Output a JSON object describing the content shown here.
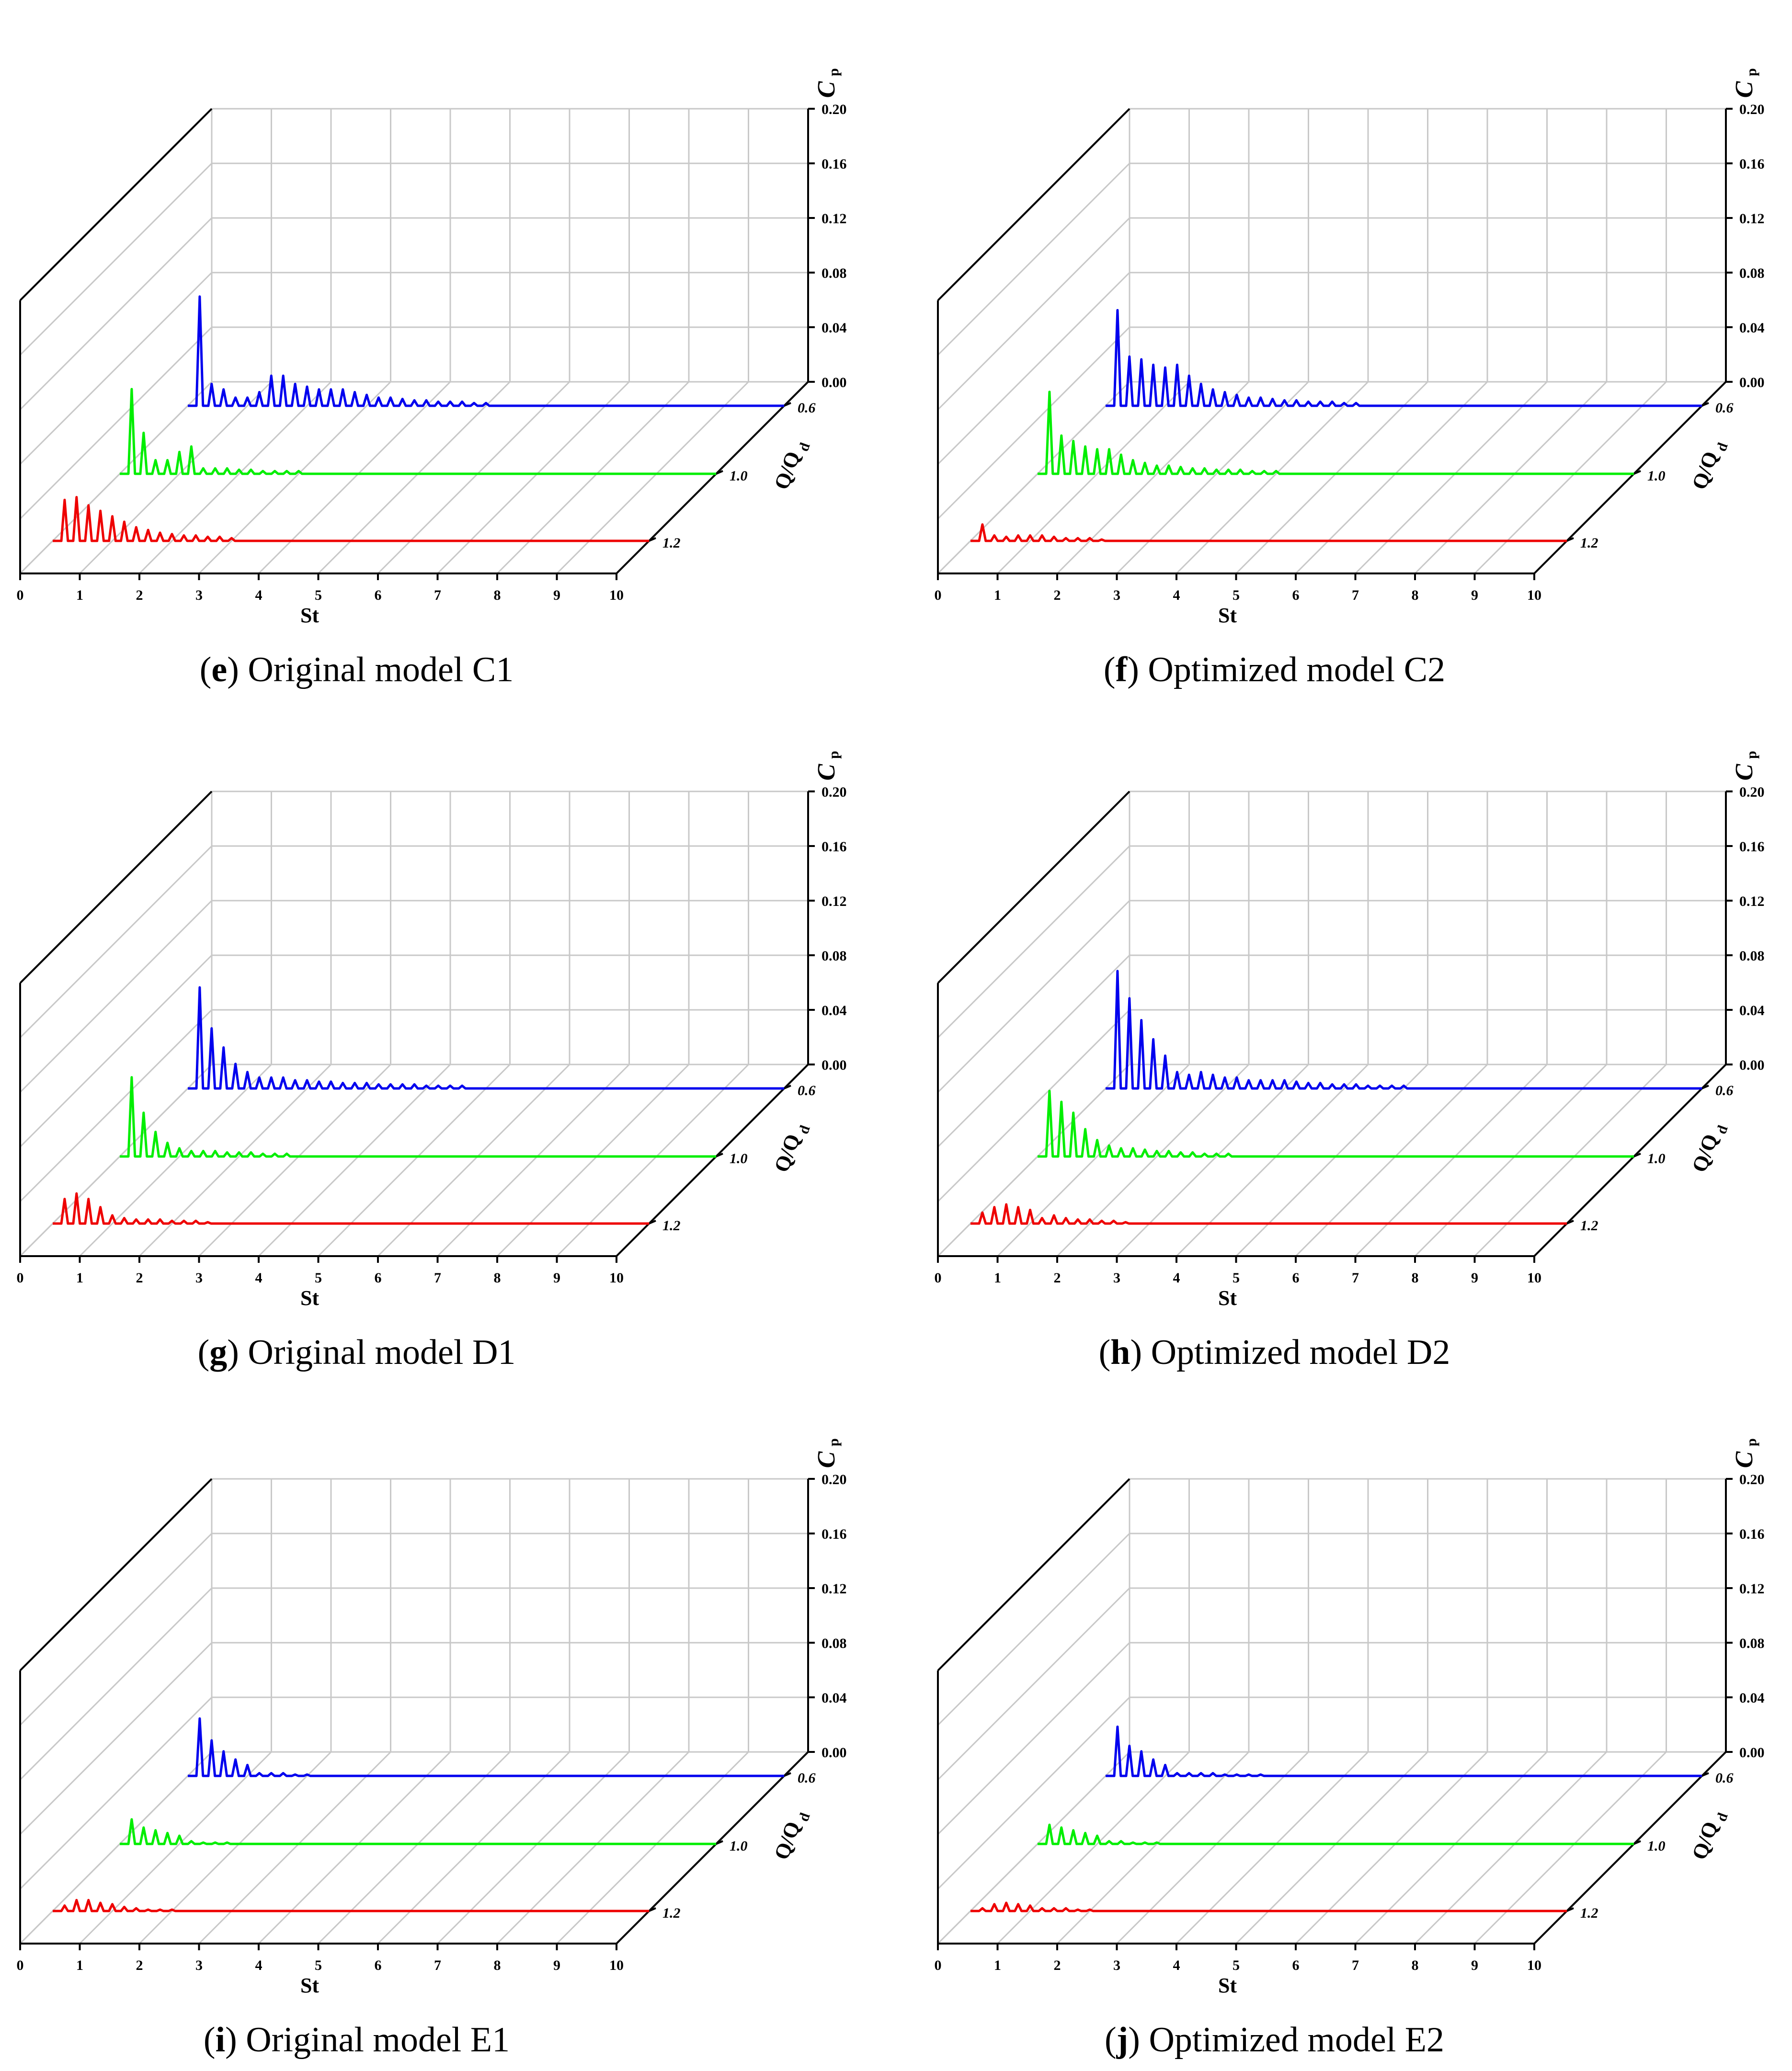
{
  "figure": {
    "axis_labels": {
      "x": "St",
      "z": "C",
      "z_sub": "p",
      "y": "Q/Q",
      "y_sub": "d"
    },
    "x_ticks": [
      "0",
      "1",
      "2",
      "3",
      "4",
      "5",
      "6",
      "7",
      "8",
      "9",
      "10"
    ],
    "z_ticks": [
      "0.00",
      "0.04",
      "0.08",
      "0.12",
      "0.16",
      "0.20"
    ],
    "flow_ticks": [
      "0.6",
      "1.0",
      "1.2"
    ],
    "colors": {
      "q06": "#0000ee",
      "q10": "#00ee00",
      "q12": "#ee0000",
      "grid": "#c8c8c8",
      "axis": "#000000"
    }
  },
  "chart_data": [
    {
      "type": "line",
      "panel": "e",
      "caption_letter": "e",
      "caption_text": "Original model C1",
      "xlabel": "St",
      "ylabel": "Q/Qd",
      "zlabel": "Cp",
      "xlim": [
        0,
        10
      ],
      "zlim": [
        0,
        0.2
      ],
      "series": [
        {
          "name": "0.6",
          "color": "#0000ee",
          "peaks_st": [
            0.2,
            0.4,
            0.6,
            0.8,
            1.0,
            1.2,
            1.4,
            1.6,
            1.8,
            2.0,
            2.2,
            2.4,
            2.6,
            2.8,
            3.0,
            3.2,
            3.4,
            3.6,
            3.8,
            4.0,
            4.2,
            4.4,
            4.6,
            4.8,
            5.0
          ],
          "peaks_cp": [
            0.08,
            0.016,
            0.012,
            0.006,
            0.006,
            0.01,
            0.022,
            0.022,
            0.016,
            0.014,
            0.012,
            0.012,
            0.012,
            0.01,
            0.008,
            0.006,
            0.006,
            0.005,
            0.004,
            0.004,
            0.003,
            0.003,
            0.003,
            0.002,
            0.002
          ]
        },
        {
          "name": "1.0",
          "color": "#00ee00",
          "peaks_st": [
            0.2,
            0.4,
            0.6,
            0.8,
            1.0,
            1.2,
            1.4,
            1.6,
            1.8,
            2.0,
            2.2,
            2.4,
            2.6,
            2.8,
            3.0
          ],
          "peaks_cp": [
            0.062,
            0.03,
            0.01,
            0.01,
            0.016,
            0.02,
            0.004,
            0.004,
            0.004,
            0.003,
            0.003,
            0.002,
            0.002,
            0.002,
            0.002
          ]
        },
        {
          "name": "1.2",
          "color": "#ee0000",
          "peaks_st": [
            0.2,
            0.4,
            0.6,
            0.8,
            1.0,
            1.2,
            1.4,
            1.6,
            1.8,
            2.0,
            2.2,
            2.4,
            2.6,
            2.8,
            3.0
          ],
          "peaks_cp": [
            0.03,
            0.032,
            0.026,
            0.022,
            0.018,
            0.014,
            0.01,
            0.008,
            0.006,
            0.005,
            0.004,
            0.004,
            0.003,
            0.003,
            0.002
          ]
        }
      ]
    },
    {
      "type": "line",
      "panel": "f",
      "caption_letter": "f",
      "caption_text": "Optimized model C2",
      "xlabel": "St",
      "ylabel": "Q/Qd",
      "zlabel": "Cp",
      "xlim": [
        0,
        10
      ],
      "zlim": [
        0,
        0.2
      ],
      "series": [
        {
          "name": "0.6",
          "color": "#0000ee",
          "peaks_st": [
            0.2,
            0.4,
            0.6,
            0.8,
            1.0,
            1.2,
            1.4,
            1.6,
            1.8,
            2.0,
            2.2,
            2.4,
            2.6,
            2.8,
            3.0,
            3.2,
            3.4,
            3.6,
            3.8,
            4.0,
            4.2
          ],
          "peaks_cp": [
            0.07,
            0.036,
            0.034,
            0.03,
            0.028,
            0.03,
            0.022,
            0.016,
            0.012,
            0.01,
            0.008,
            0.006,
            0.006,
            0.005,
            0.004,
            0.004,
            0.003,
            0.003,
            0.003,
            0.002,
            0.002
          ]
        },
        {
          "name": "1.0",
          "color": "#00ee00",
          "peaks_st": [
            0.2,
            0.4,
            0.6,
            0.8,
            1.0,
            1.2,
            1.4,
            1.6,
            1.8,
            2.0,
            2.2,
            2.4,
            2.6,
            2.8,
            3.0,
            3.2,
            3.4,
            3.6,
            3.8,
            4.0
          ],
          "peaks_cp": [
            0.06,
            0.028,
            0.024,
            0.02,
            0.018,
            0.018,
            0.014,
            0.01,
            0.008,
            0.006,
            0.006,
            0.005,
            0.004,
            0.004,
            0.003,
            0.003,
            0.003,
            0.002,
            0.002,
            0.002
          ]
        },
        {
          "name": "1.2",
          "color": "#ee0000",
          "peaks_st": [
            0.2,
            0.4,
            0.6,
            0.8,
            1.0,
            1.2,
            1.4,
            1.6,
            1.8,
            2.0,
            2.2
          ],
          "peaks_cp": [
            0.012,
            0.004,
            0.003,
            0.004,
            0.004,
            0.004,
            0.003,
            0.002,
            0.002,
            0.002,
            0.001
          ]
        }
      ]
    },
    {
      "type": "line",
      "panel": "g",
      "caption_letter": "g",
      "caption_text": "Original model D1",
      "xlabel": "St",
      "ylabel": "Q/Qd",
      "zlabel": "Cp",
      "xlim": [
        0,
        10
      ],
      "zlim": [
        0,
        0.2
      ],
      "series": [
        {
          "name": "0.6",
          "color": "#0000ee",
          "peaks_st": [
            0.2,
            0.4,
            0.6,
            0.8,
            1.0,
            1.2,
            1.4,
            1.6,
            1.8,
            2.0,
            2.2,
            2.4,
            2.6,
            2.8,
            3.0,
            3.2,
            3.4,
            3.6,
            3.8,
            4.0,
            4.2,
            4.4,
            4.6
          ],
          "peaks_cp": [
            0.074,
            0.044,
            0.03,
            0.018,
            0.012,
            0.008,
            0.008,
            0.008,
            0.006,
            0.006,
            0.005,
            0.005,
            0.004,
            0.004,
            0.004,
            0.003,
            0.003,
            0.003,
            0.003,
            0.002,
            0.002,
            0.002,
            0.002
          ]
        },
        {
          "name": "1.0",
          "color": "#00ee00",
          "peaks_st": [
            0.2,
            0.4,
            0.6,
            0.8,
            1.0,
            1.2,
            1.4,
            1.6,
            1.8,
            2.0,
            2.2,
            2.4,
            2.6,
            2.8
          ],
          "peaks_cp": [
            0.058,
            0.032,
            0.018,
            0.01,
            0.006,
            0.004,
            0.004,
            0.004,
            0.003,
            0.003,
            0.003,
            0.002,
            0.002,
            0.002
          ]
        },
        {
          "name": "1.2",
          "color": "#ee0000",
          "peaks_st": [
            0.2,
            0.4,
            0.6,
            0.8,
            1.0,
            1.2,
            1.4,
            1.6,
            1.8,
            2.0,
            2.2,
            2.4,
            2.6
          ],
          "peaks_cp": [
            0.018,
            0.022,
            0.018,
            0.012,
            0.006,
            0.004,
            0.003,
            0.003,
            0.003,
            0.002,
            0.002,
            0.002,
            0.001
          ]
        }
      ]
    },
    {
      "type": "line",
      "panel": "h",
      "caption_letter": "h",
      "caption_text": "Optimized model D2",
      "xlabel": "St",
      "ylabel": "Q/Qd",
      "zlabel": "Cp",
      "xlim": [
        0,
        10
      ],
      "zlim": [
        0,
        0.2
      ],
      "series": [
        {
          "name": "0.6",
          "color": "#0000ee",
          "peaks_st": [
            0.2,
            0.4,
            0.6,
            0.8,
            1.0,
            1.2,
            1.4,
            1.6,
            1.8,
            2.0,
            2.2,
            2.4,
            2.6,
            2.8,
            3.0,
            3.2,
            3.4,
            3.6,
            3.8,
            4.0,
            4.2,
            4.4,
            4.6,
            4.8,
            5.0
          ],
          "peaks_cp": [
            0.086,
            0.066,
            0.05,
            0.036,
            0.024,
            0.012,
            0.01,
            0.012,
            0.01,
            0.008,
            0.008,
            0.006,
            0.006,
            0.006,
            0.006,
            0.005,
            0.004,
            0.004,
            0.003,
            0.003,
            0.003,
            0.002,
            0.002,
            0.002,
            0.002
          ]
        },
        {
          "name": "1.0",
          "color": "#00ee00",
          "peaks_st": [
            0.2,
            0.4,
            0.6,
            0.8,
            1.0,
            1.2,
            1.4,
            1.6,
            1.8,
            2.0,
            2.2,
            2.4,
            2.6,
            2.8,
            3.0,
            3.2
          ],
          "peaks_cp": [
            0.048,
            0.04,
            0.032,
            0.02,
            0.012,
            0.008,
            0.006,
            0.006,
            0.005,
            0.004,
            0.004,
            0.003,
            0.003,
            0.002,
            0.002,
            0.002
          ]
        },
        {
          "name": "1.2",
          "color": "#ee0000",
          "peaks_st": [
            0.2,
            0.4,
            0.6,
            0.8,
            1.0,
            1.2,
            1.4,
            1.6,
            1.8,
            2.0,
            2.2,
            2.4,
            2.6
          ],
          "peaks_cp": [
            0.008,
            0.012,
            0.014,
            0.012,
            0.01,
            0.004,
            0.006,
            0.004,
            0.003,
            0.003,
            0.002,
            0.002,
            0.001
          ]
        }
      ]
    },
    {
      "type": "line",
      "panel": "i",
      "caption_letter": "i",
      "caption_text": "Original model E1",
      "xlabel": "St",
      "ylabel": "Q/Qd",
      "zlabel": "Cp",
      "xlim": [
        0,
        10
      ],
      "zlim": [
        0,
        0.2
      ],
      "series": [
        {
          "name": "0.6",
          "color": "#0000ee",
          "peaks_st": [
            0.2,
            0.4,
            0.6,
            0.8,
            1.0,
            1.2,
            1.4,
            1.6,
            1.8,
            2.0
          ],
          "peaks_cp": [
            0.042,
            0.026,
            0.018,
            0.012,
            0.008,
            0.002,
            0.002,
            0.002,
            0.001,
            0.001
          ]
        },
        {
          "name": "1.0",
          "color": "#00ee00",
          "peaks_st": [
            0.2,
            0.4,
            0.6,
            0.8,
            1.0,
            1.2,
            1.4,
            1.6,
            1.8
          ],
          "peaks_cp": [
            0.018,
            0.012,
            0.01,
            0.008,
            0.006,
            0.002,
            0.001,
            0.001,
            0.001
          ]
        },
        {
          "name": "1.2",
          "color": "#ee0000",
          "peaks_st": [
            0.2,
            0.4,
            0.6,
            0.8,
            1.0,
            1.2,
            1.4,
            1.6,
            1.8,
            2.0
          ],
          "peaks_cp": [
            0.004,
            0.008,
            0.008,
            0.006,
            0.005,
            0.003,
            0.002,
            0.001,
            0.001,
            0.001
          ]
        }
      ]
    },
    {
      "type": "line",
      "panel": "j",
      "caption_letter": "j",
      "caption_text": "Optimized model E2",
      "xlabel": "St",
      "ylabel": "Q/Qd",
      "zlabel": "Cp",
      "xlim": [
        0,
        10
      ],
      "zlim": [
        0,
        0.2
      ],
      "series": [
        {
          "name": "0.6",
          "color": "#0000ee",
          "peaks_st": [
            0.2,
            0.4,
            0.6,
            0.8,
            1.0,
            1.2,
            1.4,
            1.6,
            1.8,
            2.0,
            2.2,
            2.4,
            2.6
          ],
          "peaks_cp": [
            0.036,
            0.022,
            0.018,
            0.012,
            0.008,
            0.002,
            0.002,
            0.002,
            0.002,
            0.001,
            0.001,
            0.001,
            0.001
          ]
        },
        {
          "name": "1.0",
          "color": "#00ee00",
          "peaks_st": [
            0.2,
            0.4,
            0.6,
            0.8,
            1.0,
            1.2,
            1.4,
            1.6,
            1.8,
            2.0
          ],
          "peaks_cp": [
            0.014,
            0.012,
            0.01,
            0.008,
            0.006,
            0.002,
            0.002,
            0.001,
            0.001,
            0.001
          ]
        },
        {
          "name": "1.2",
          "color": "#ee0000",
          "peaks_st": [
            0.2,
            0.4,
            0.6,
            0.8,
            1.0,
            1.2,
            1.4,
            1.6,
            1.8,
            2.0
          ],
          "peaks_cp": [
            0.002,
            0.005,
            0.006,
            0.005,
            0.004,
            0.002,
            0.002,
            0.002,
            0.001,
            0.001
          ]
        }
      ]
    }
  ]
}
